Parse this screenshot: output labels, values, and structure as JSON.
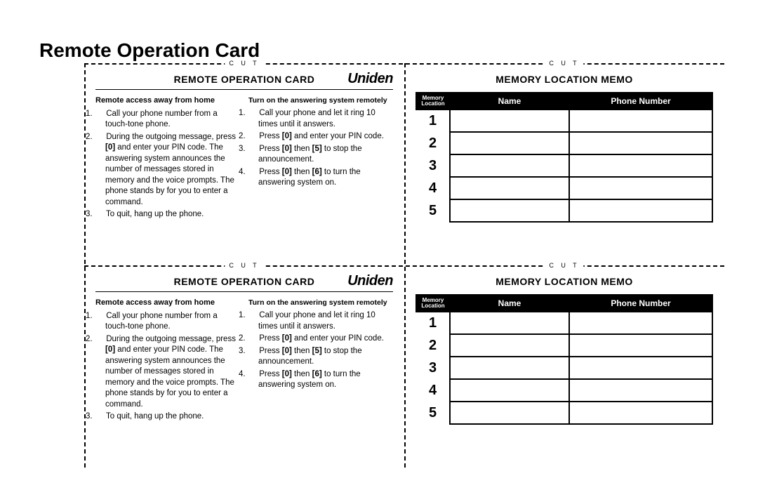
{
  "page_title": "Remote Operation Card",
  "brand": "Uniden",
  "cut_label": "C  U  T",
  "op_card": {
    "title": "REMOTE OPERATION CARD",
    "left": {
      "heading": "Remote access away from home",
      "items": [
        "Call your phone number from a touch-tone phone.",
        "During the outgoing message, press [0] and enter your PIN code. The answering system announces the number of messages stored in memory and the voice prompts. The phone stands by for you to enter a command.",
        "To quit, hang up the phone."
      ]
    },
    "right": {
      "heading": "Turn on the answering system remotely",
      "items": [
        "Call your phone and let it ring 10 times until it answers.",
        "Press [0] and enter your PIN code.",
        "Press [0] then [5] to stop the announcement.",
        "Press [0] then [6] to turn the answering system on."
      ]
    }
  },
  "memo": {
    "title": "MEMORY LOCATION MEMO",
    "cols": {
      "ml1": "Memory",
      "ml2": "Location",
      "name": "Name",
      "phone": "Phone Number"
    },
    "rows": [
      "1",
      "2",
      "3",
      "4",
      "5"
    ]
  },
  "colors": {
    "black": "#000000",
    "white": "#ffffff"
  }
}
